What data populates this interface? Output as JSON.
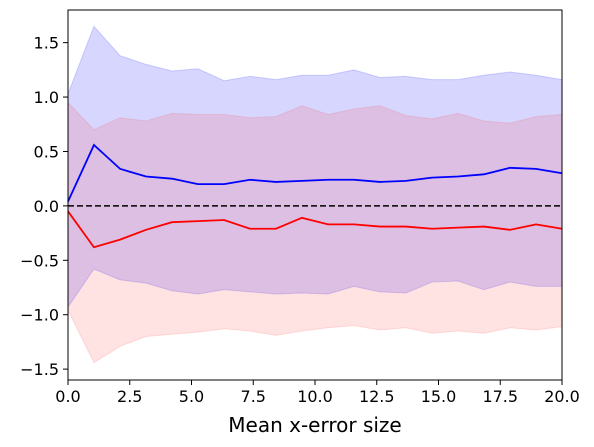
{
  "chart_data": {
    "type": "line",
    "title": "",
    "xlabel": "Mean x-error size",
    "ylabel": "",
    "xlim": [
      0,
      20
    ],
    "ylim": [
      -1.6,
      1.8
    ],
    "xticks": [
      0.0,
      2.5,
      5.0,
      7.5,
      10.0,
      12.5,
      15.0,
      17.5,
      20.0
    ],
    "xtick_labels": [
      "0.0",
      "2.5",
      "5.0",
      "7.5",
      "10.0",
      "12.5",
      "15.0",
      "17.5",
      "20.0"
    ],
    "yticks": [
      -1.5,
      -1.0,
      -0.5,
      0.0,
      0.5,
      1.0,
      1.5
    ],
    "ytick_labels": [
      "−1.5",
      "−1.0",
      "−0.5",
      "0.0",
      "0.5",
      "1.0",
      "1.5"
    ],
    "grid": false,
    "x": [
      0.0,
      1.05,
      2.11,
      3.16,
      4.21,
      5.26,
      6.32,
      7.37,
      8.42,
      9.47,
      10.53,
      11.58,
      12.63,
      13.68,
      14.74,
      15.79,
      16.84,
      17.89,
      18.95,
      20.0
    ],
    "series": [
      {
        "color": "#0000ff",
        "band_color": "#0000ff",
        "values": [
          0.04,
          0.56,
          0.34,
          0.27,
          0.25,
          0.2,
          0.2,
          0.24,
          0.22,
          0.23,
          0.24,
          0.24,
          0.22,
          0.23,
          0.26,
          0.27,
          0.29,
          0.35,
          0.34,
          0.3
        ],
        "upper": [
          1.03,
          1.65,
          1.38,
          1.3,
          1.24,
          1.26,
          1.15,
          1.19,
          1.16,
          1.2,
          1.2,
          1.25,
          1.18,
          1.19,
          1.16,
          1.16,
          1.2,
          1.23,
          1.2,
          1.16
        ],
        "lower": [
          -0.93,
          -0.58,
          -0.68,
          -0.71,
          -0.78,
          -0.81,
          -0.77,
          -0.79,
          -0.81,
          -0.8,
          -0.81,
          -0.74,
          -0.79,
          -0.8,
          -0.7,
          -0.69,
          -0.77,
          -0.7,
          -0.74,
          -0.74
        ]
      },
      {
        "color": "#ff0000",
        "band_color": "#ff4d4d",
        "values": [
          -0.05,
          -0.38,
          -0.31,
          -0.22,
          -0.15,
          -0.14,
          -0.13,
          -0.21,
          -0.21,
          -0.11,
          -0.17,
          -0.17,
          -0.19,
          -0.19,
          -0.21,
          -0.2,
          -0.19,
          -0.22,
          -0.17,
          -0.21
        ],
        "upper": [
          0.95,
          0.7,
          0.81,
          0.78,
          0.85,
          0.84,
          0.84,
          0.81,
          0.82,
          0.92,
          0.84,
          0.89,
          0.92,
          0.83,
          0.8,
          0.85,
          0.78,
          0.76,
          0.82,
          0.84
        ],
        "lower": [
          -0.96,
          -1.44,
          -1.29,
          -1.2,
          -1.18,
          -1.16,
          -1.13,
          -1.15,
          -1.19,
          -1.15,
          -1.12,
          -1.1,
          -1.14,
          -1.12,
          -1.17,
          -1.15,
          -1.17,
          -1.12,
          -1.14,
          -1.11
        ]
      }
    ],
    "reference_line": {
      "y": 0.0,
      "color": "#000000",
      "style": "dashed"
    }
  }
}
